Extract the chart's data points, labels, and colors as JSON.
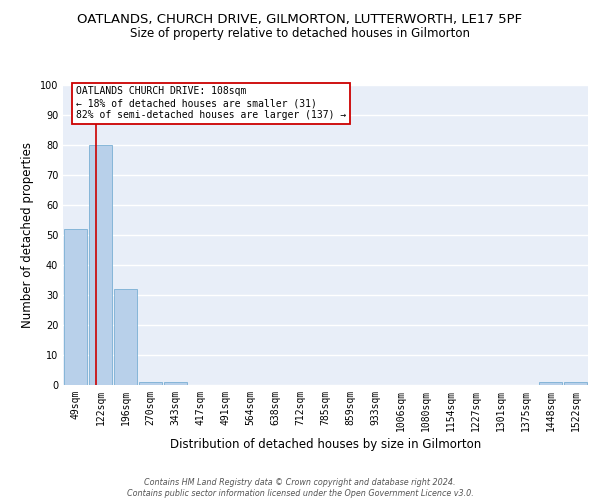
{
  "title": "OATLANDS, CHURCH DRIVE, GILMORTON, LUTTERWORTH, LE17 5PF",
  "subtitle": "Size of property relative to detached houses in Gilmorton",
  "xlabel": "Distribution of detached houses by size in Gilmorton",
  "ylabel": "Number of detached properties",
  "categories": [
    "49sqm",
    "122sqm",
    "196sqm",
    "270sqm",
    "343sqm",
    "417sqm",
    "491sqm",
    "564sqm",
    "638sqm",
    "712sqm",
    "785sqm",
    "859sqm",
    "933sqm",
    "1006sqm",
    "1080sqm",
    "1154sqm",
    "1227sqm",
    "1301sqm",
    "1375sqm",
    "1448sqm",
    "1522sqm"
  ],
  "values": [
    52,
    80,
    32,
    1,
    1,
    0,
    0,
    0,
    0,
    0,
    0,
    0,
    0,
    0,
    0,
    0,
    0,
    0,
    0,
    1,
    1
  ],
  "bar_color": "#b8d0ea",
  "bar_edge_color": "#7aafd4",
  "vline_x": 0.82,
  "vline_color": "#cc0000",
  "annotation_text": "OATLANDS CHURCH DRIVE: 108sqm\n← 18% of detached houses are smaller (31)\n82% of semi-detached houses are larger (137) →",
  "annotation_box_color": "#ffffff",
  "annotation_box_edge": "#cc0000",
  "ylim": [
    0,
    100
  ],
  "yticks": [
    0,
    10,
    20,
    30,
    40,
    50,
    60,
    70,
    80,
    90,
    100
  ],
  "footer_line1": "Contains HM Land Registry data © Crown copyright and database right 2024.",
  "footer_line2": "Contains public sector information licensed under the Open Government Licence v3.0.",
  "title_fontsize": 9.5,
  "subtitle_fontsize": 8.5,
  "axis_label_fontsize": 8.5,
  "tick_fontsize": 7,
  "annotation_fontsize": 7,
  "background_color": "#e8eef8"
}
